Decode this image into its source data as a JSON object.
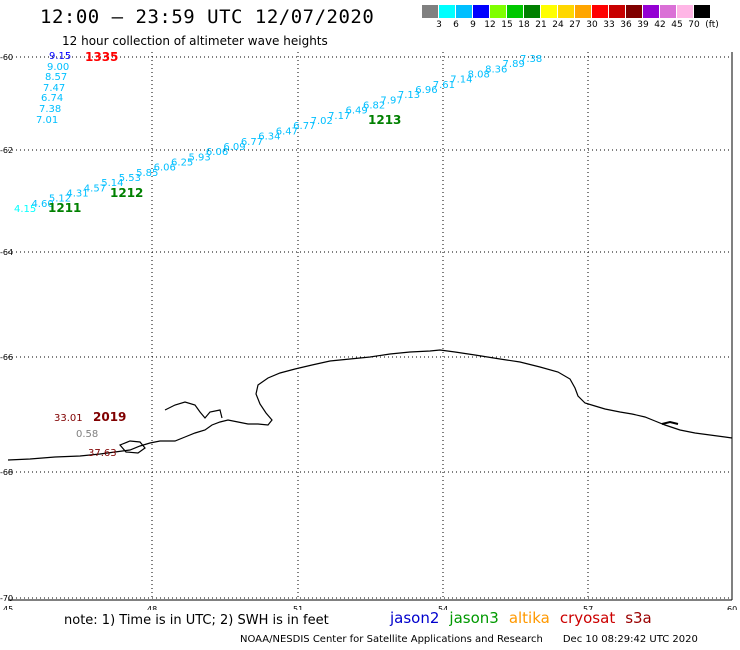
{
  "title": "12:00 – 23:59 UTC 12/07/2020",
  "subtitle": "12 hour collection of altimeter wave heights",
  "color_scale": {
    "unit": "(ft)",
    "ticks": [
      "3",
      "6",
      "9",
      "12",
      "15",
      "18",
      "21",
      "24",
      "27",
      "30",
      "33",
      "36",
      "39",
      "42",
      "45",
      "70"
    ],
    "colors": [
      "#808080",
      "#00ffff",
      "#00bfff",
      "#0000ff",
      "#7fff00",
      "#00c800",
      "#008000",
      "#ffff00",
      "#ffd700",
      "#ffa500",
      "#ff0000",
      "#c80000",
      "#800000",
      "#9400d3",
      "#da70d6",
      "#ffb6e6",
      "#000000"
    ]
  },
  "map": {
    "lat_ticks": [
      "-60",
      "-62",
      "-64",
      "-66",
      "-68",
      "-70"
    ],
    "lon_ticks": [
      "45",
      "48",
      "51",
      "54",
      "57",
      "60"
    ]
  },
  "tracks": [
    {
      "time": "1335",
      "time_color": "#ff0000",
      "points": [
        {
          "v": "9.15",
          "color": "#0000ff"
        },
        {
          "v": "9.00",
          "color": "#00bfff"
        },
        {
          "v": "8.57",
          "color": "#00bfff"
        },
        {
          "v": "7.47",
          "color": "#00bfff"
        },
        {
          "v": "6.74",
          "color": "#00bfff"
        },
        {
          "v": "7.38",
          "color": "#00bfff"
        },
        {
          "v": "7.01",
          "color": "#00bfff"
        }
      ]
    },
    {
      "time_labels": [
        {
          "t": "1211",
          "color": "#008000"
        },
        {
          "t": "1212",
          "color": "#008000"
        },
        {
          "t": "1213",
          "color": "#008000"
        }
      ],
      "points": [
        {
          "v": "4.15",
          "color": "#00ffff"
        },
        {
          "v": "4.60",
          "color": "#00bfff"
        },
        {
          "v": "5.12",
          "color": "#00bfff"
        },
        {
          "v": "4.31",
          "color": "#00bfff"
        },
        {
          "v": "4.57",
          "color": "#00bfff"
        },
        {
          "v": "5.14",
          "color": "#00bfff"
        },
        {
          "v": "5.53",
          "color": "#00bfff"
        },
        {
          "v": "5.85",
          "color": "#00bfff"
        },
        {
          "v": "6.06",
          "color": "#00bfff"
        },
        {
          "v": "6.25",
          "color": "#00bfff"
        },
        {
          "v": "5.93",
          "color": "#00bfff"
        },
        {
          "v": "6.06",
          "color": "#00bfff"
        },
        {
          "v": "6.09",
          "color": "#00bfff"
        },
        {
          "v": "6.77",
          "color": "#00bfff"
        },
        {
          "v": "6.34",
          "color": "#00bfff"
        },
        {
          "v": "6.47",
          "color": "#00bfff"
        },
        {
          "v": "6.77",
          "color": "#00bfff"
        },
        {
          "v": "7.02",
          "color": "#00bfff"
        },
        {
          "v": "7.17",
          "color": "#00bfff"
        },
        {
          "v": "6.49",
          "color": "#00bfff"
        },
        {
          "v": "6.82",
          "color": "#00bfff"
        },
        {
          "v": "7.97",
          "color": "#00bfff"
        },
        {
          "v": "7.13",
          "color": "#00bfff"
        },
        {
          "v": "6.96",
          "color": "#00bfff"
        },
        {
          "v": "7.61",
          "color": "#00bfff"
        },
        {
          "v": "7.14",
          "color": "#00bfff"
        },
        {
          "v": "8.08",
          "color": "#00bfff"
        },
        {
          "v": "8.36",
          "color": "#00bfff"
        },
        {
          "v": "7.89",
          "color": "#00bfff"
        },
        {
          "v": "7.38",
          "color": "#00bfff"
        }
      ]
    },
    {
      "time": "2019",
      "time_color": "#800000",
      "points": [
        {
          "v": "33.01",
          "color": "#800000"
        },
        {
          "v": "0.58",
          "color": "#808080"
        },
        {
          "v": "37.63",
          "color": "#800000"
        }
      ]
    }
  ],
  "note": "note:  1) Time is in UTC; 2) SWH is in feet",
  "missions": [
    {
      "name": "jason2",
      "color": "#0000cc"
    },
    {
      "name": "jason3",
      "color": "#009900"
    },
    {
      "name": "altika",
      "color": "#ff9900"
    },
    {
      "name": "cryosat",
      "color": "#cc0000"
    },
    {
      "name": "s3a",
      "color": "#990000"
    }
  ],
  "footer": {
    "credit": "NOAA/NESDIS Center for Satellite Applications and Research",
    "timestamp": "Dec 10 08:29:42 UTC 2020"
  }
}
